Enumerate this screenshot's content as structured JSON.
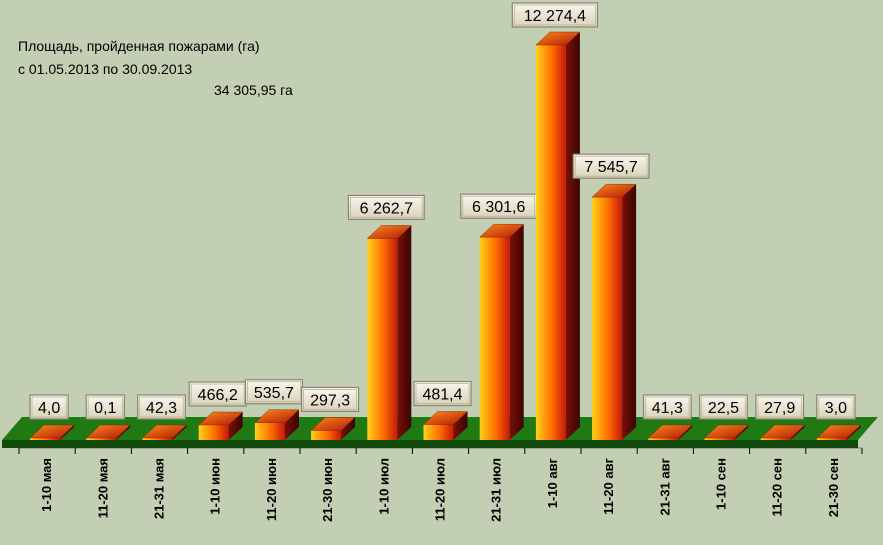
{
  "chart_data": {
    "type": "bar",
    "title_lines": [
      "Площадь, пройденная пожарами (га)",
      "с 01.05.2013 по  30.09.2013",
      "34 305,95 га"
    ],
    "categories": [
      "1-10   мая",
      "11-20 мая",
      "21-31 мая",
      "1-10   июн",
      "11-20 июн",
      "21-30 июн",
      "1-10   июл",
      "11-20 июл",
      "21-31 июл",
      "1-10    авг",
      "11-20  авг",
      "21-31   авг",
      "1-10   сен",
      "11-20 сен",
      "21-30 сен"
    ],
    "values": [
      4.0,
      0.1,
      42.3,
      466.2,
      535.7,
      297.3,
      6262.7,
      481.4,
      6301.6,
      12274.4,
      7545.7,
      41.3,
      22.5,
      27.9,
      3.0
    ],
    "value_labels": [
      "4,0",
      "0,1",
      "42,3",
      "466,2",
      "535,7",
      "297,3",
      "6 262,7",
      "481,4",
      "6 301,6",
      "12 274,4",
      "7 545,7",
      "41,3",
      "22,5",
      "27,9",
      "3,0"
    ],
    "ylim": [
      0,
      12274.4
    ],
    "legend": "none",
    "grid": false,
    "colors": {
      "background": "#c3cfb3",
      "floor": "#1f7a14",
      "bar_light": "#ffd21a",
      "bar_mid": "#ff6a00",
      "bar_dark": "#7a0f0a",
      "label_box": "#ece8d8"
    }
  }
}
